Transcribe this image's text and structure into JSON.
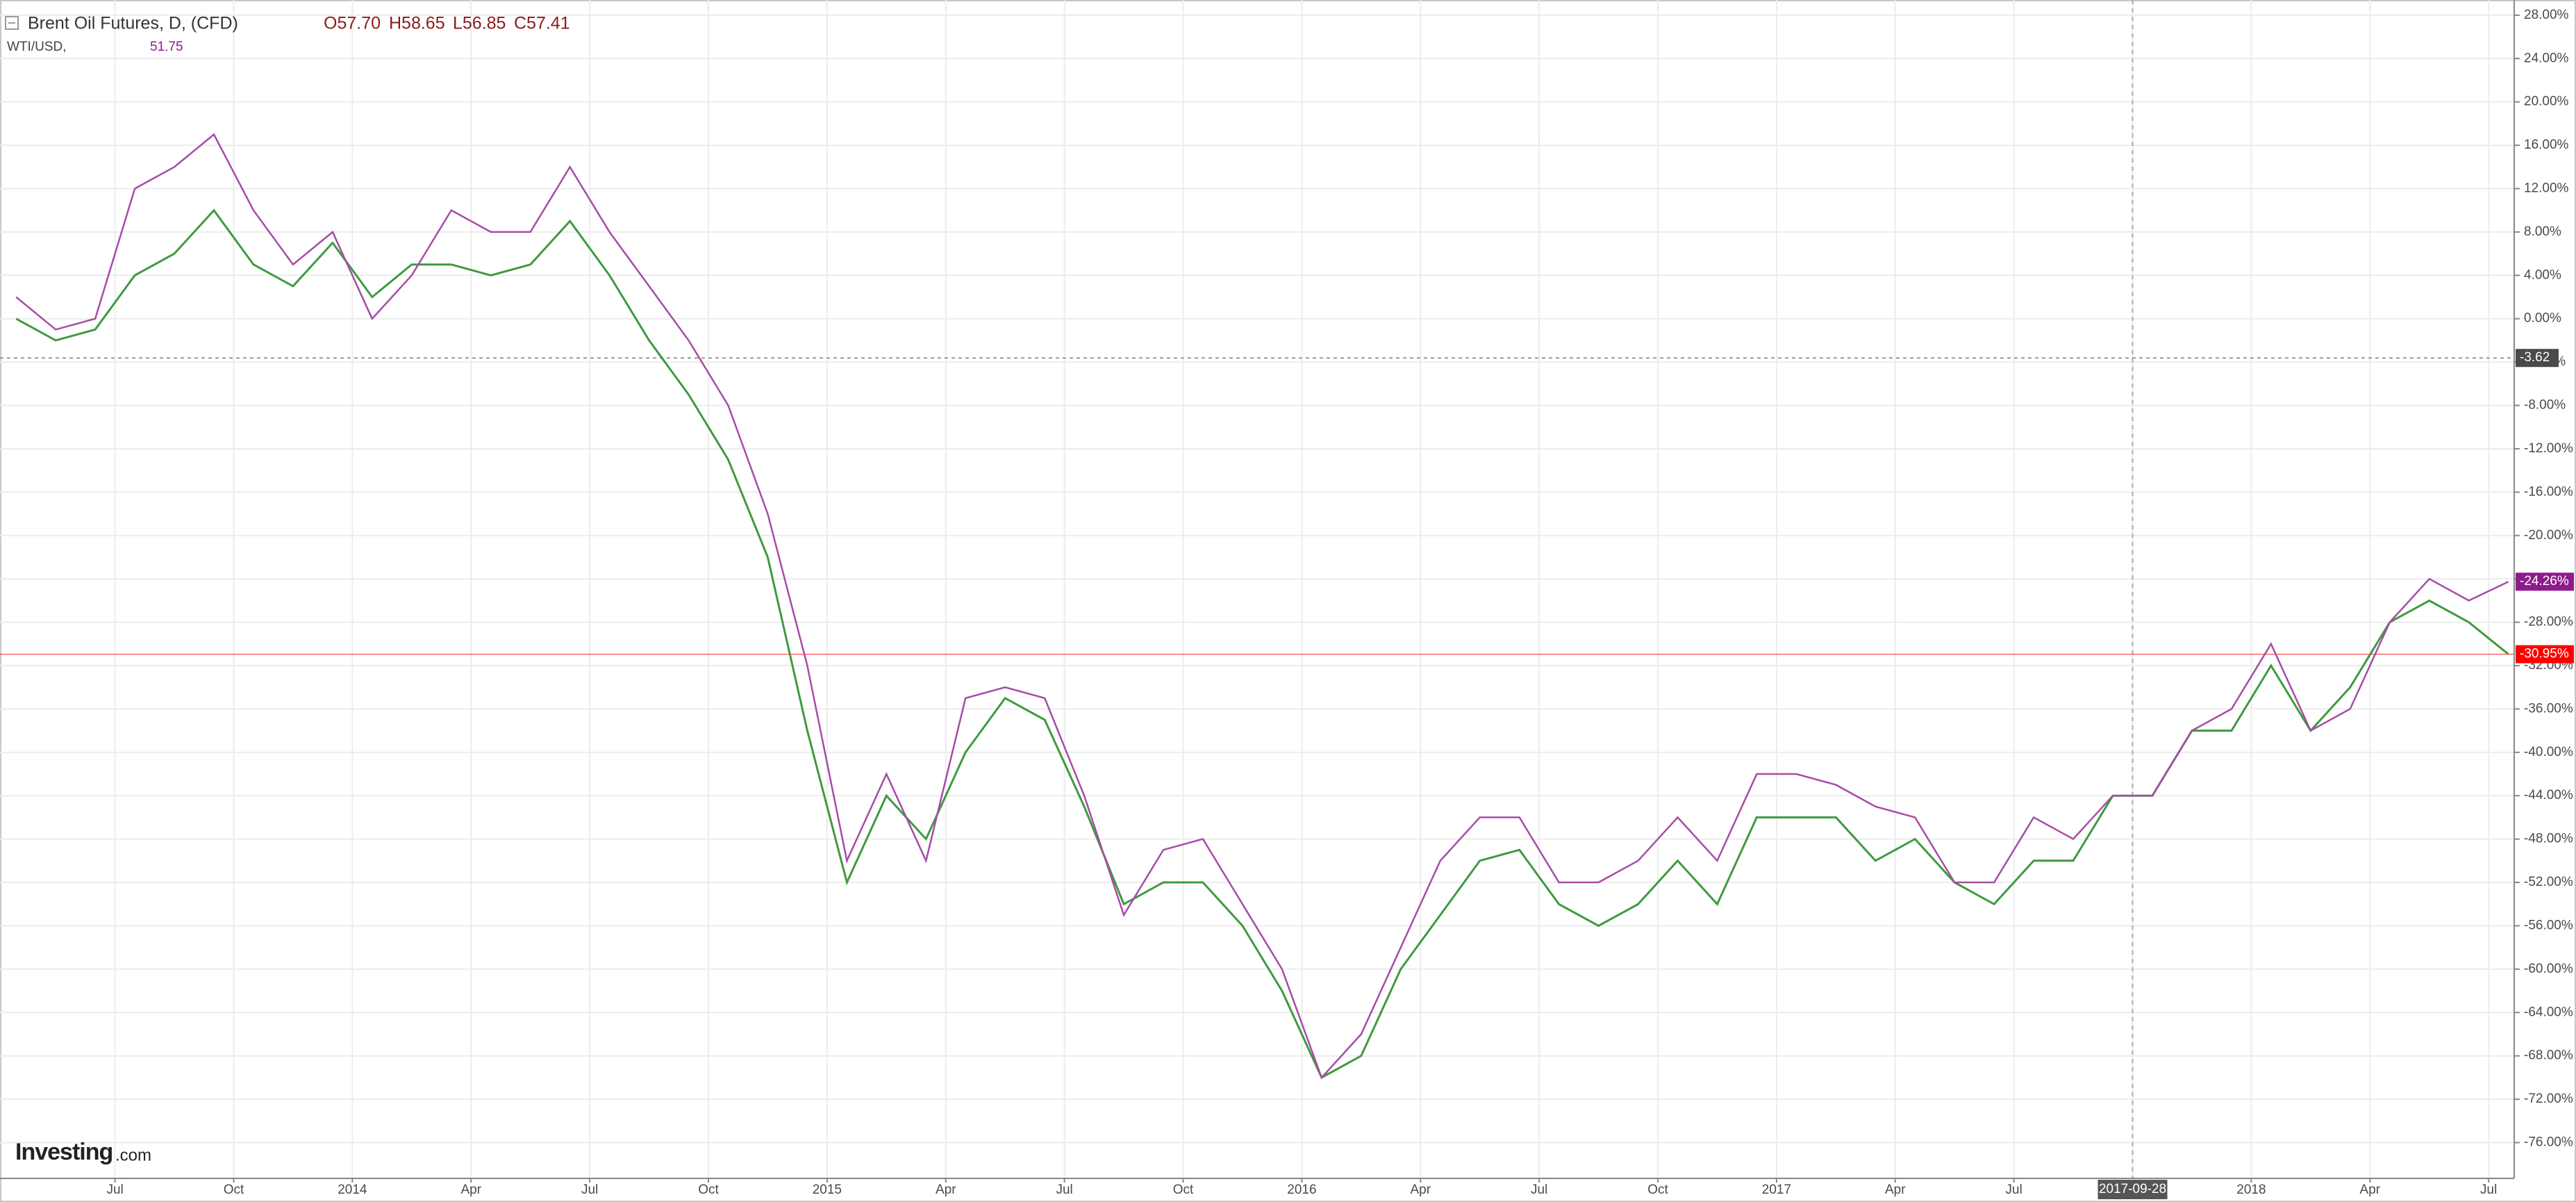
{
  "chart_data": {
    "type": "line",
    "header": {
      "symbol": "Brent Oil Futures, D, (CFD)",
      "open": "O57.70",
      "high": "H58.65",
      "low": "L56.85",
      "close": "C57.41",
      "compare_symbol": "WTI/USD,",
      "compare_value": "51.75"
    },
    "logo": {
      "name": "Investing",
      "suffix": ".com"
    },
    "categories": [
      null,
      null,
      null,
      "Jul",
      null,
      null,
      "Oct",
      null,
      null,
      "2014",
      null,
      null,
      "Apr",
      null,
      null,
      "Jul",
      null,
      null,
      "Oct",
      null,
      null,
      "2015",
      null,
      null,
      "Apr",
      null,
      null,
      "Jul",
      null,
      null,
      "Oct",
      null,
      null,
      "2016",
      null,
      null,
      "Apr",
      null,
      null,
      "Jul",
      null,
      null,
      "Oct",
      null,
      null,
      "2017",
      null,
      null,
      "Apr",
      null,
      null,
      "Jul",
      null,
      null,
      "2017-09-28",
      null,
      null,
      "2018",
      null,
      null,
      "Apr",
      null,
      null,
      "Jul"
    ],
    "crosshair_category": "2017-09-28",
    "series": [
      {
        "name": "Brent Oil Futures",
        "color": "#3f9a3f",
        "tag_color": "#ff0000",
        "values": [
          0,
          -2,
          -1,
          4,
          6,
          10,
          5,
          3,
          7,
          2,
          5,
          5,
          4,
          5,
          9,
          4,
          -2,
          -7,
          -13,
          -22,
          -38,
          -52,
          -44,
          -48,
          -40,
          -35,
          -37,
          -45,
          -54,
          -52,
          -52,
          -56,
          -62,
          -70,
          -68,
          -60,
          -55,
          -50,
          -49,
          -54,
          -56,
          -54,
          -50,
          -54,
          -46,
          -46,
          -46,
          -50,
          -48,
          -52,
          -54,
          -50,
          -50,
          -44,
          -44,
          -38,
          -38,
          -32,
          -38,
          -34,
          -28,
          -26,
          -28,
          -30.95
        ],
        "value_labels": [
          null,
          null,
          null,
          null,
          null,
          null,
          null,
          null,
          null,
          null,
          null,
          null,
          null,
          null,
          null,
          null,
          null,
          null,
          null,
          null,
          null,
          null,
          null,
          null,
          null,
          null,
          null,
          null,
          null,
          null,
          null,
          null,
          null,
          null,
          null,
          null,
          null,
          null,
          null,
          null,
          null,
          null,
          null,
          null,
          null,
          null,
          null,
          null,
          null,
          null,
          null,
          null,
          null,
          null,
          null,
          null,
          null,
          null,
          null,
          null,
          null,
          null,
          null,
          "-30.95%"
        ]
      },
      {
        "name": "WTI/USD",
        "color": "#a64ca6",
        "tag_color": "#8e1b8e",
        "values": [
          2,
          -1,
          0,
          12,
          14,
          17,
          10,
          5,
          8,
          0,
          4,
          10,
          8,
          8,
          14,
          8,
          3,
          -2,
          -8,
          -18,
          -32,
          -50,
          -42,
          -50,
          -35,
          -34,
          -35,
          -44,
          -55,
          -49,
          -48,
          -54,
          -60,
          -70,
          -66,
          -58,
          -50,
          -46,
          -46,
          -52,
          -52,
          -50,
          -46,
          -50,
          -42,
          -42,
          -43,
          -45,
          -46,
          -52,
          -52,
          -46,
          -48,
          -44,
          -44,
          -38,
          -36,
          -30,
          -38,
          -36,
          -28,
          -24,
          -26,
          -24.26
        ],
        "value_labels": [
          null,
          null,
          null,
          null,
          null,
          null,
          null,
          null,
          null,
          null,
          null,
          null,
          null,
          null,
          null,
          null,
          null,
          null,
          null,
          null,
          null,
          null,
          null,
          null,
          null,
          null,
          null,
          null,
          null,
          null,
          null,
          null,
          null,
          null,
          null,
          null,
          null,
          null,
          null,
          null,
          null,
          null,
          null,
          null,
          null,
          null,
          null,
          null,
          null,
          null,
          null,
          null,
          null,
          null,
          null,
          null,
          null,
          null,
          null,
          null,
          null,
          null,
          null,
          "-24.26%"
        ]
      }
    ],
    "reference_line": -3.62,
    "ylim": [
      -79.3,
      29.4
    ],
    "yticks": [
      {
        "value": 28,
        "label": "28.00%"
      },
      {
        "value": 24,
        "label": "24.00%"
      },
      {
        "value": 20,
        "label": "20.00%"
      },
      {
        "value": 16,
        "label": "16.00%"
      },
      {
        "value": 12,
        "label": "12.00%"
      },
      {
        "value": 8,
        "label": "8.00%"
      },
      {
        "value": 4,
        "label": "4.00%"
      },
      {
        "value": 0,
        "label": "0.00%"
      },
      {
        "value": -4,
        "label": "-4.00%"
      },
      {
        "value": -8,
        "label": "-8.00%"
      },
      {
        "value": -12,
        "label": "-12.00%"
      },
      {
        "value": -16,
        "label": "-16.00%"
      },
      {
        "value": -20,
        "label": "-20.00%"
      },
      {
        "value": -24,
        "label": "-24.00%"
      },
      {
        "value": -28,
        "label": "-28.00%"
      },
      {
        "value": -32,
        "label": "-32.00%"
      },
      {
        "value": -36,
        "label": "-36.00%"
      },
      {
        "value": -40,
        "label": "-40.00%"
      },
      {
        "value": -44,
        "label": "-44.00%"
      },
      {
        "value": -48,
        "label": "-48.00%"
      },
      {
        "value": -52,
        "label": "-52.00%"
      },
      {
        "value": -56,
        "label": "-56.00%"
      },
      {
        "value": -60,
        "label": "-60.00%"
      },
      {
        "value": -64,
        "label": "-64.00%"
      },
      {
        "value": -68,
        "label": "-68.00%"
      },
      {
        "value": -72,
        "label": "-72.00%"
      },
      {
        "value": -76,
        "label": "-76.00%"
      }
    ],
    "grid": true
  }
}
